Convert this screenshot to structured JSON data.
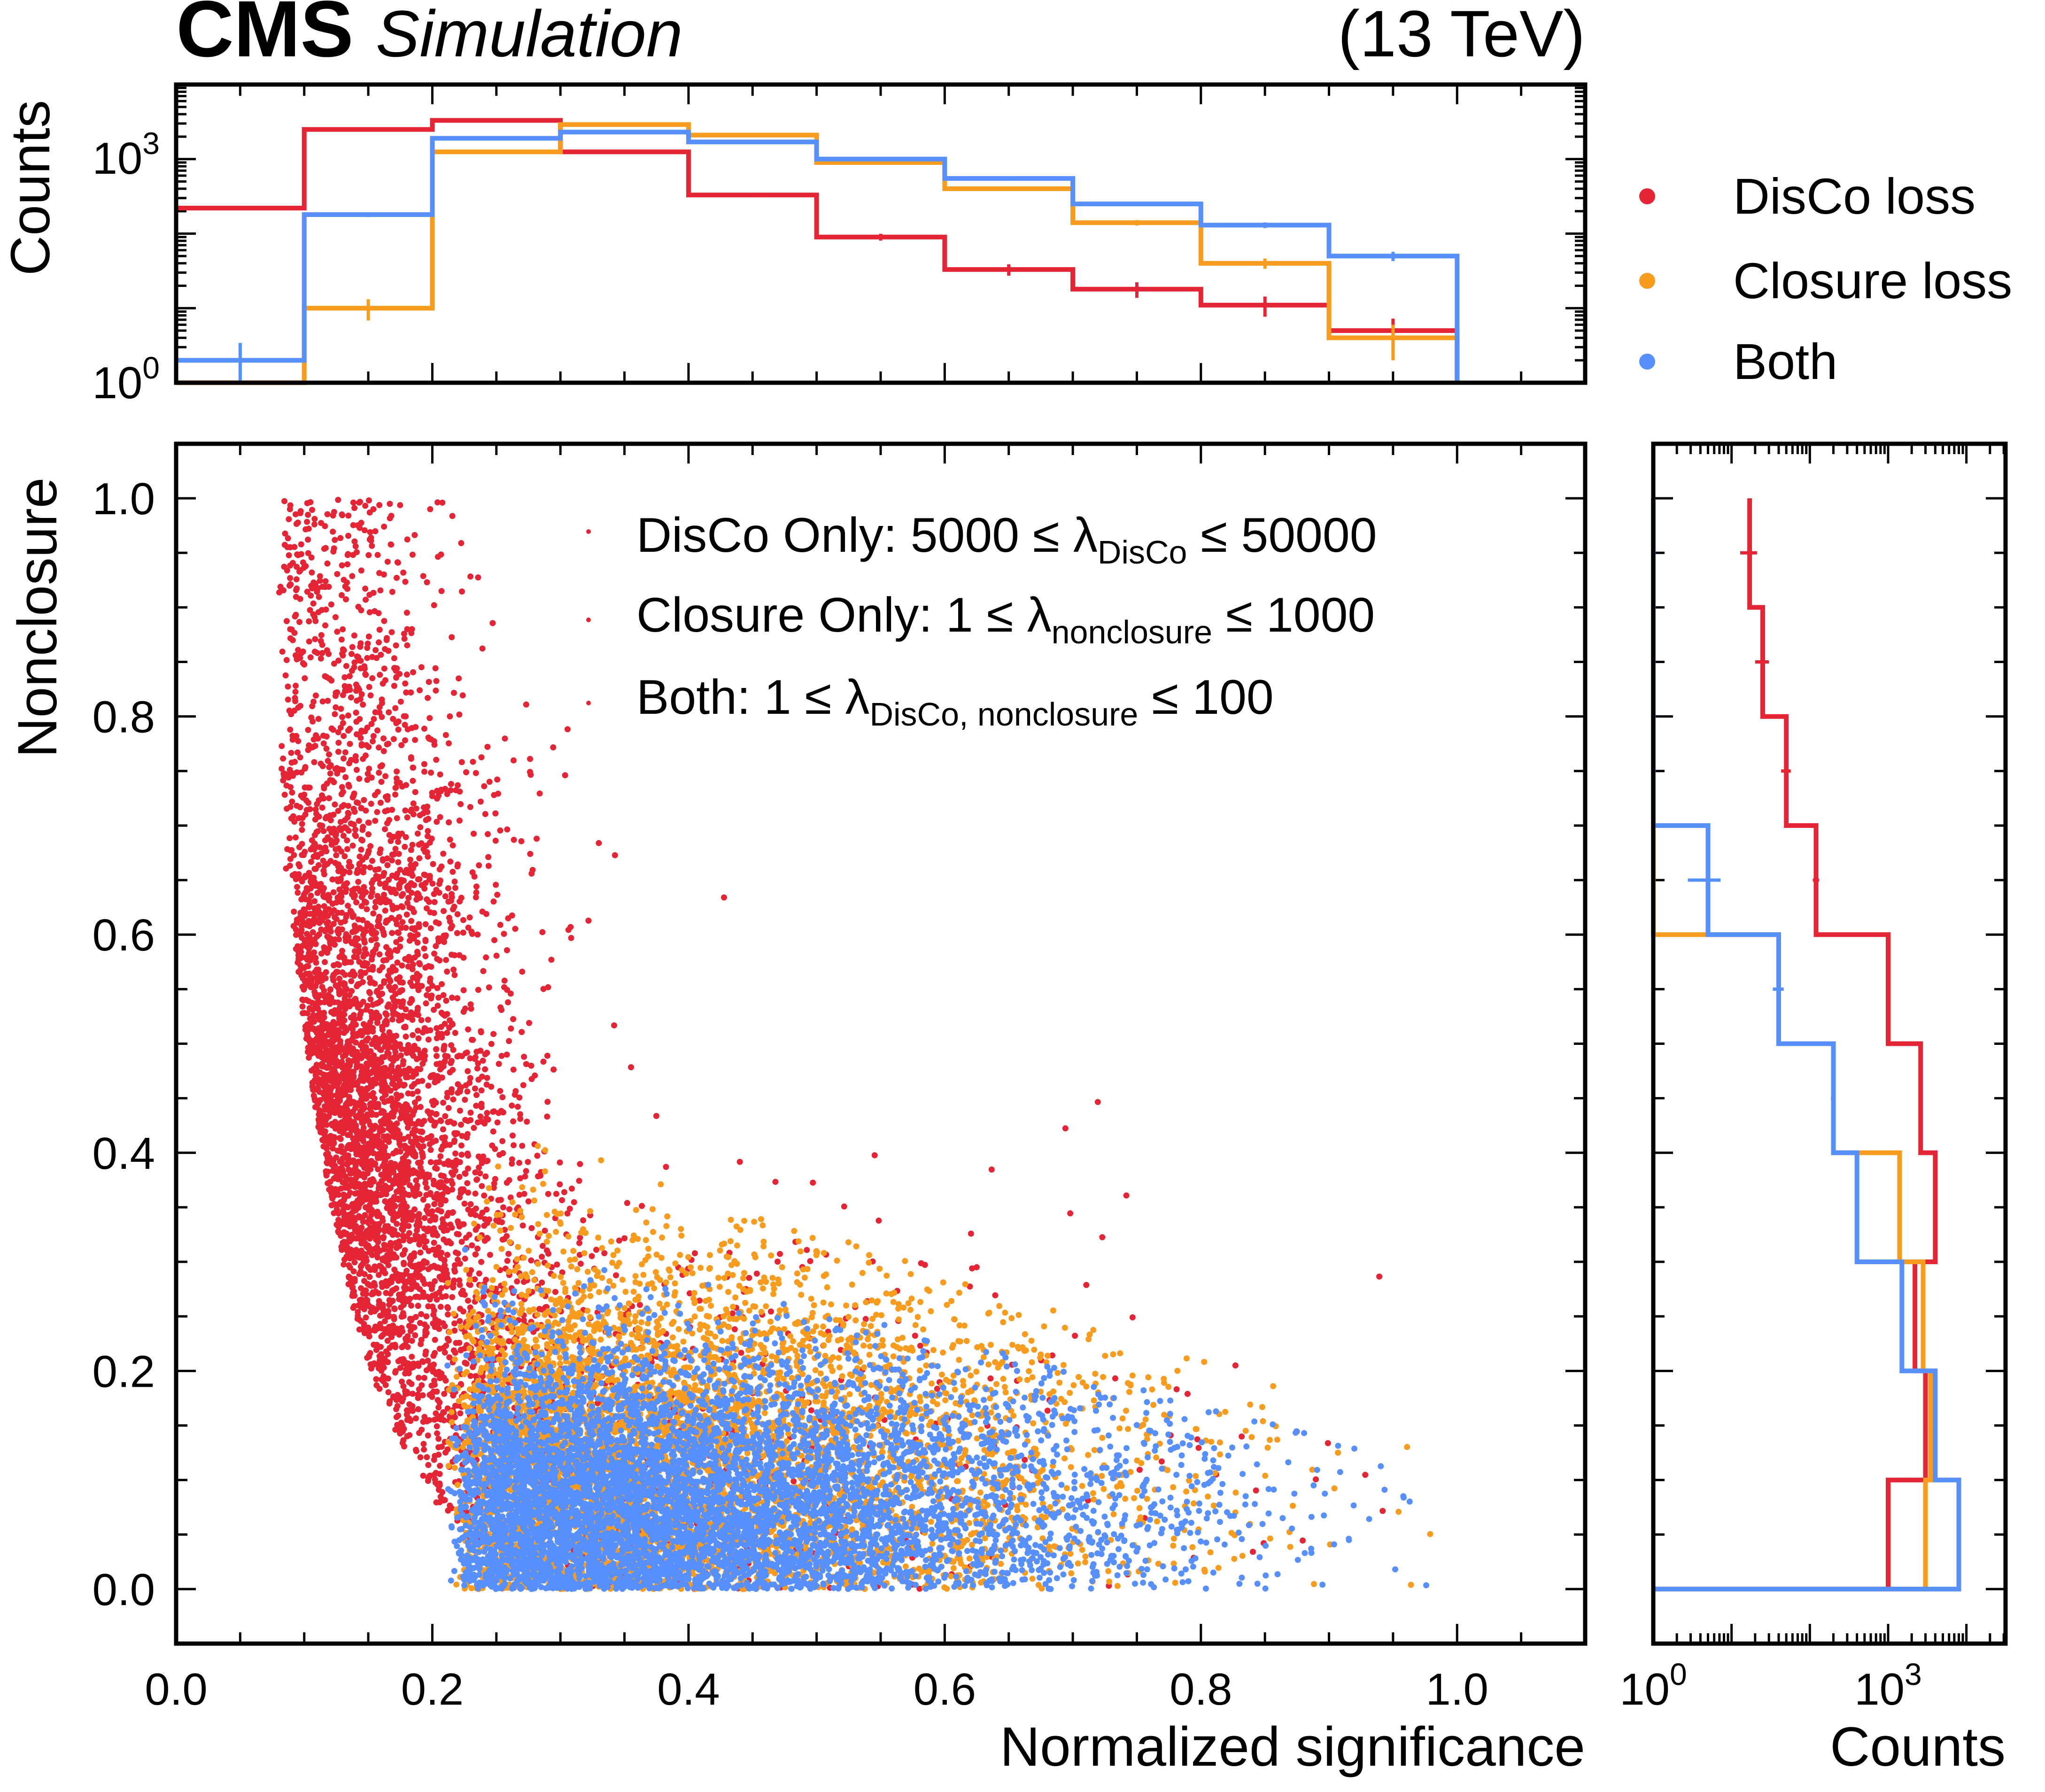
{
  "header": {
    "brand": "CMS",
    "subtitle": "Simulation",
    "energy": "(13 TeV)"
  },
  "colors": {
    "disco": "#e42536",
    "closure": "#f89c20",
    "both": "#5790fc"
  },
  "legend": {
    "items": [
      {
        "label": "DisCo loss",
        "color": "#e42536"
      },
      {
        "label": "Closure loss",
        "color": "#f89c20"
      },
      {
        "label": "Both",
        "color": "#5790fc"
      }
    ]
  },
  "annotations": {
    "disco_prefix": "DisCo Only: 5000 ≤ λ",
    "disco_sub": "DisCo",
    "disco_suffix": " ≤ 50000",
    "closure_prefix": "Closure Only: 1 ≤ λ",
    "closure_sub": "nonclosure",
    "closure_suffix": " ≤ 1000",
    "both_prefix": "Both: 1 ≤ λ",
    "both_sub": "DisCo, nonclosure",
    "both_suffix": " ≤ 100"
  },
  "chart_data": [
    {
      "type": "scatter",
      "panel": "main",
      "xlabel": "Normalized significance",
      "ylabel": "Nonclosure",
      "xlim": [
        0.0,
        1.1
      ],
      "ylim": [
        -0.05,
        1.05
      ],
      "xticks": [
        "0.0",
        "0.2",
        "0.4",
        "0.6",
        "0.8",
        "1.0"
      ],
      "yticks": [
        "0.0",
        "0.2",
        "0.4",
        "0.6",
        "0.8",
        "1.0"
      ],
      "series": [
        {
          "name": "DisCo loss",
          "key": "disco",
          "x_range": [
            0.05,
            1.0
          ],
          "y_range": [
            0.0,
            1.0
          ],
          "center_x": 0.17,
          "center_y": 0.45
        },
        {
          "name": "Closure loss",
          "key": "closure",
          "x_range": [
            0.2,
            1.0
          ],
          "y_range": [
            0.0,
            0.47
          ],
          "center_x": 0.4,
          "center_y": 0.15
        },
        {
          "name": "Both",
          "key": "both",
          "x_range": [
            0.21,
            1.0
          ],
          "y_range": [
            0.0,
            0.38
          ],
          "center_x": 0.4,
          "center_y": 0.1
        }
      ]
    },
    {
      "type": "histogram",
      "panel": "top",
      "ylabel": "Counts",
      "yscale": "log",
      "ylim_exp": [
        0,
        4
      ],
      "ytick_exp": [
        0,
        3
      ],
      "bin_edges": [
        0.0,
        0.1,
        0.2,
        0.3,
        0.4,
        0.5,
        0.6,
        0.7,
        0.8,
        0.9,
        1.0
      ],
      "series": [
        {
          "name": "DisCo loss",
          "key": "disco",
          "values": [
            220,
            2500,
            3300,
            1250,
            330,
            90,
            33,
            18,
            11,
            5
          ]
        },
        {
          "name": "Closure loss",
          "key": "closure",
          "values": [
            0,
            10,
            1250,
            2900,
            2100,
            900,
            400,
            140,
            40,
            4
          ]
        },
        {
          "name": "Both",
          "key": "both",
          "values": [
            2,
            180,
            1900,
            2300,
            1700,
            1000,
            550,
            250,
            130,
            50
          ]
        }
      ]
    },
    {
      "type": "histogram",
      "panel": "right",
      "orientation": "horizontal",
      "xlabel": "Counts",
      "xscale": "log",
      "xlim_exp": [
        0,
        4.5
      ],
      "xticks": [
        {
          "exp": 0,
          "label": "10",
          "sup": "0"
        },
        {
          "exp": 3,
          "label": "10",
          "sup": "3"
        }
      ],
      "bin_edges": [
        0.0,
        0.1,
        0.2,
        0.3,
        0.4,
        0.5,
        0.6,
        0.7,
        0.8,
        0.9,
        1.0
      ],
      "series": [
        {
          "name": "DisCo loss",
          "key": "disco",
          "values": [
            1000,
            3000,
            2200,
            4000,
            2600,
            1000,
            120,
            50,
            25,
            17
          ]
        },
        {
          "name": "Closure loss",
          "key": "closure",
          "values": [
            3000,
            3500,
            2800,
            1400,
            200,
            40,
            0,
            0,
            0,
            0
          ]
        },
        {
          "name": "Both",
          "key": "both",
          "values": [
            8000,
            4000,
            1500,
            400,
            200,
            40,
            5,
            0,
            0,
            0
          ]
        }
      ]
    }
  ]
}
